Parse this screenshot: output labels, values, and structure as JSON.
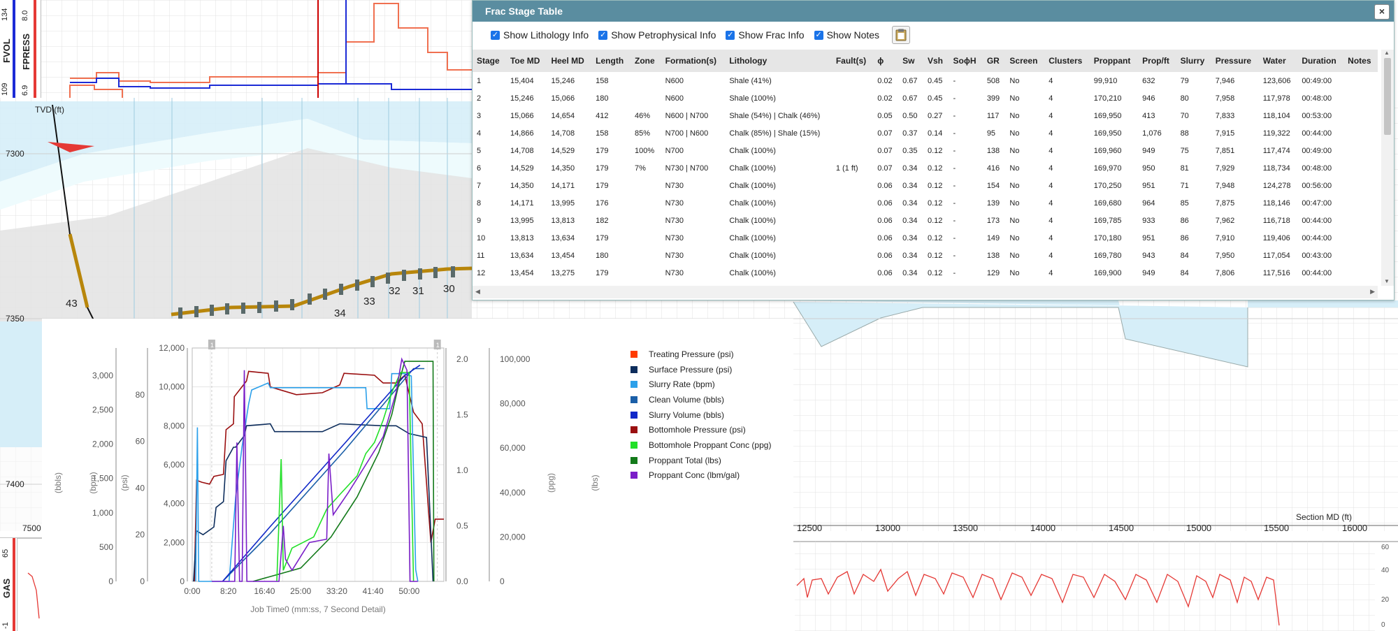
{
  "tracks": {
    "fvol_label": "FVOL",
    "fpress_label": "FPRESS",
    "fvol_max": "134",
    "fvol_min": "109",
    "fpress_max": "8.0",
    "fpress_min": "6.9",
    "gas_label": "GAS",
    "gas_max": "65",
    "gas_min": "-1"
  },
  "section": {
    "tvd_label": "TVD (ft)",
    "depth_ticks": [
      "7300",
      "7350",
      "7400"
    ],
    "stage_labels": [
      "43",
      "34",
      "33",
      "32",
      "31",
      "30"
    ],
    "md_axis_label": "Section MD (ft)",
    "md_ticks": [
      "7500",
      "12500",
      "13000",
      "13500",
      "14000",
      "14500",
      "15000",
      "15500",
      "16000"
    ],
    "gas_ticks": [
      "60",
      "40",
      "20",
      "0"
    ]
  },
  "frac_table": {
    "title": "Frac Stage Table",
    "close_label": "×",
    "options": [
      {
        "label": "Show Lithology Info",
        "checked": true
      },
      {
        "label": "Show Petrophysical Info",
        "checked": true
      },
      {
        "label": "Show Frac Info",
        "checked": true
      },
      {
        "label": "Show Notes",
        "checked": true
      }
    ],
    "columns": [
      "Stage",
      "Toe MD",
      "Heel MD",
      "Length",
      "Zone",
      "Formation(s)",
      "Lithology",
      "Fault(s)",
      "ϕ",
      "Sw",
      "Vsh",
      "SoϕH",
      "GR",
      "Screen",
      "Clusters",
      "Proppant",
      "Prop/ft",
      "Slurry",
      "Pressure",
      "Water",
      "Duration",
      "Notes"
    ],
    "rows": [
      [
        "1",
        "15,404",
        "15,246",
        "158",
        "",
        "N600",
        "Shale (41%)",
        "",
        "0.02",
        "0.67",
        "0.45",
        "-",
        "508",
        "No",
        "4",
        "99,910",
        "632",
        "79",
        "7,946",
        "123,606",
        "00:49:00",
        ""
      ],
      [
        "2",
        "15,246",
        "15,066",
        "180",
        "",
        "N600",
        "Shale (100%)",
        "",
        "0.02",
        "0.67",
        "0.45",
        "-",
        "399",
        "No",
        "4",
        "170,210",
        "946",
        "80",
        "7,958",
        "117,978",
        "00:48:00",
        ""
      ],
      [
        "3",
        "15,066",
        "14,654",
        "412",
        "46%",
        "N600 | N700",
        "Shale (54%) | Chalk (46%)",
        "",
        "0.05",
        "0.50",
        "0.27",
        "-",
        "117",
        "No",
        "4",
        "169,950",
        "413",
        "70",
        "7,833",
        "118,104",
        "00:53:00",
        ""
      ],
      [
        "4",
        "14,866",
        "14,708",
        "158",
        "85%",
        "N700 | N600",
        "Chalk (85%) | Shale (15%)",
        "",
        "0.07",
        "0.37",
        "0.14",
        "-",
        "95",
        "No",
        "4",
        "169,950",
        "1,076",
        "88",
        "7,915",
        "119,322",
        "00:44:00",
        ""
      ],
      [
        "5",
        "14,708",
        "14,529",
        "179",
        "100%",
        "N700",
        "Chalk (100%)",
        "",
        "0.07",
        "0.35",
        "0.12",
        "-",
        "138",
        "No",
        "4",
        "169,960",
        "949",
        "75",
        "7,851",
        "117,474",
        "00:49:00",
        ""
      ],
      [
        "6",
        "14,529",
        "14,350",
        "179",
        "7%",
        "N730 | N700",
        "Chalk (100%)",
        "1 (1 ft)",
        "0.07",
        "0.34",
        "0.12",
        "-",
        "416",
        "No",
        "4",
        "169,970",
        "950",
        "81",
        "7,929",
        "118,734",
        "00:48:00",
        ""
      ],
      [
        "7",
        "14,350",
        "14,171",
        "179",
        "",
        "N730",
        "Chalk (100%)",
        "",
        "0.06",
        "0.34",
        "0.12",
        "-",
        "154",
        "No",
        "4",
        "170,250",
        "951",
        "71",
        "7,948",
        "124,278",
        "00:56:00",
        ""
      ],
      [
        "8",
        "14,171",
        "13,995",
        "176",
        "",
        "N730",
        "Chalk (100%)",
        "",
        "0.06",
        "0.34",
        "0.12",
        "-",
        "139",
        "No",
        "4",
        "169,680",
        "964",
        "85",
        "7,875",
        "118,146",
        "00:47:00",
        ""
      ],
      [
        "9",
        "13,995",
        "13,813",
        "182",
        "",
        "N730",
        "Chalk (100%)",
        "",
        "0.06",
        "0.34",
        "0.12",
        "-",
        "173",
        "No",
        "4",
        "169,785",
        "933",
        "86",
        "7,962",
        "116,718",
        "00:44:00",
        ""
      ],
      [
        "10",
        "13,813",
        "13,634",
        "179",
        "",
        "N730",
        "Chalk (100%)",
        "",
        "0.06",
        "0.34",
        "0.12",
        "-",
        "149",
        "No",
        "4",
        "170,180",
        "951",
        "86",
        "7,910",
        "119,406",
        "00:44:00",
        ""
      ],
      [
        "11",
        "13,634",
        "13,454",
        "180",
        "",
        "N730",
        "Chalk (100%)",
        "",
        "0.06",
        "0.34",
        "0.12",
        "-",
        "138",
        "No",
        "4",
        "169,780",
        "943",
        "84",
        "7,950",
        "117,054",
        "00:43:00",
        ""
      ],
      [
        "12",
        "13,454",
        "13,275",
        "179",
        "",
        "N730",
        "Chalk (100%)",
        "",
        "0.06",
        "0.34",
        "0.12",
        "-",
        "129",
        "No",
        "4",
        "169,900",
        "949",
        "84",
        "7,806",
        "117,516",
        "00:44:00",
        ""
      ]
    ]
  },
  "chart_data": {
    "type": "line",
    "xlabel": "Job Time0 (mm:ss, 7 Second Detail)",
    "x_ticks": [
      "0:00",
      "8:20",
      "16:40",
      "25:00",
      "33:20",
      "41:40",
      "50:00"
    ],
    "xlim_minutes": [
      0,
      58
    ],
    "axes": [
      {
        "label": "(bbls)",
        "ticks": [
          "0",
          "500",
          "1,000",
          "1,500",
          "2,000",
          "2,500",
          "3,000"
        ],
        "ylim": [
          0,
          3400
        ]
      },
      {
        "label": "(bpm)",
        "ticks": [
          "0",
          "20",
          "40",
          "60",
          "80"
        ],
        "ylim": [
          0,
          100
        ]
      },
      {
        "label": "(psi)",
        "ticks": [
          "0",
          "2,000",
          "4,000",
          "6,000",
          "8,000",
          "10,000",
          "12,000"
        ],
        "ylim": [
          0,
          12000
        ]
      },
      {
        "label": "(ppg)",
        "ticks": [
          "0.0",
          "0.5",
          "1.0",
          "1.5",
          "2.0"
        ],
        "ylim": [
          0,
          2.1
        ]
      },
      {
        "label": "(lbs)",
        "ticks": [
          "0",
          "20,000",
          "40,000",
          "60,000",
          "80,000",
          "100,000"
        ],
        "ylim": [
          0,
          105000
        ]
      }
    ],
    "series": [
      {
        "name": "Treating Pressure (psi)",
        "color": "#ff3b00"
      },
      {
        "name": "Surface Pressure (psi)",
        "color": "#0d2d5c"
      },
      {
        "name": "Slurry Rate (bpm)",
        "color": "#2ca0ea"
      },
      {
        "name": "Clean Volume (bbls)",
        "color": "#1b5fa8"
      },
      {
        "name": "Slurry Volume (bbls)",
        "color": "#1028c8"
      },
      {
        "name": "Bottomhole Pressure (psi)",
        "color": "#9a0f10"
      },
      {
        "name": "Bottomhole Proppant Conc (ppg)",
        "color": "#22e028"
      },
      {
        "name": "Proppant Total (lbs)",
        "color": "#137a1a"
      },
      {
        "name": "Proppant Conc (lbm/gal)",
        "color": "#7a1ec8"
      }
    ],
    "marker_labels": [
      "1",
      "1"
    ]
  }
}
